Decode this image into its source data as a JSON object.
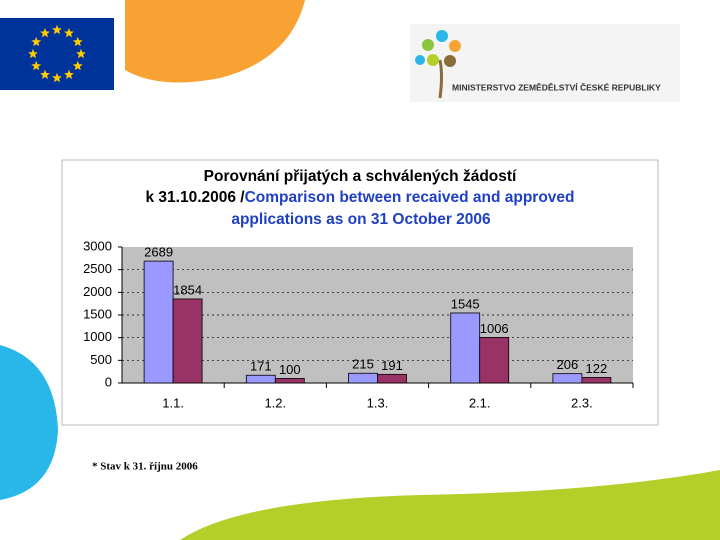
{
  "ministry": "MINISTERSTVO ZEMĚDĚLSTVÍ ČESKÉ REPUBLIKY",
  "footnote": "* Stav k 31. říjnu 2006",
  "chart_data": {
    "type": "bar",
    "title": "Porovnání přijatých a schválených žádostí",
    "subtitle_date": "k 31.10.2006 /",
    "subtitle_line1": "Comparison between recaived and approved",
    "subtitle_line2": "applications as on 31 October 2006",
    "categories": [
      "1.1.",
      "1.2.",
      "1.3.",
      "2.1.",
      "2.3."
    ],
    "series": [
      {
        "color": "#9999ff",
        "values": [
          2689,
          171,
          215,
          1545,
          206
        ]
      },
      {
        "color": "#993366",
        "values": [
          1854,
          100,
          191,
          1006,
          122
        ]
      }
    ],
    "ylim": [
      0,
      3000
    ],
    "yticks": [
      0,
      500,
      1000,
      1500,
      2000,
      2500,
      3000
    ],
    "grid": true
  }
}
